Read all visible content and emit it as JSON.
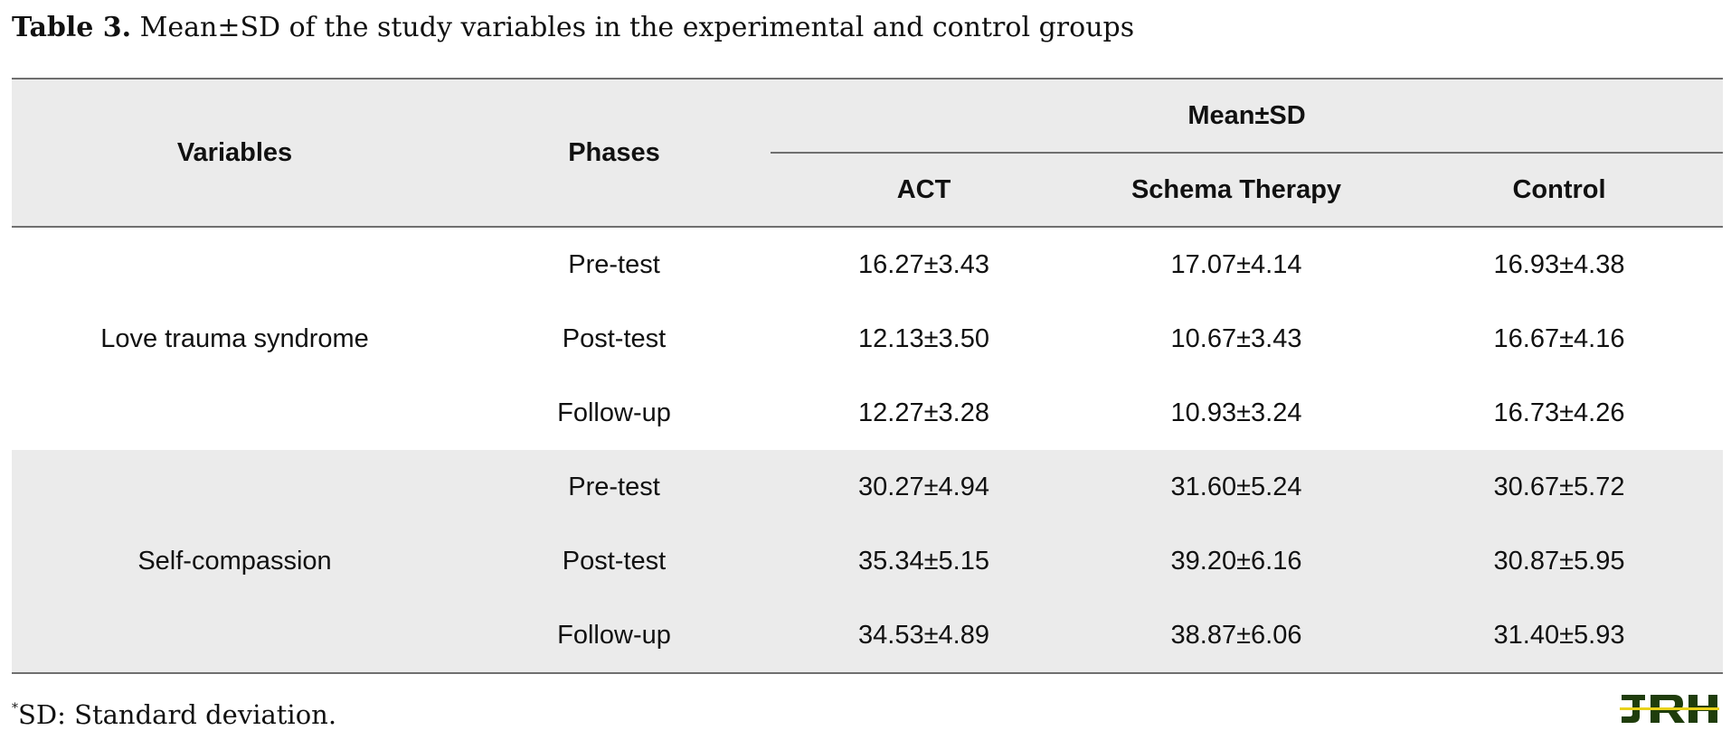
{
  "caption": {
    "label": "Table 3.",
    "text": " Mean±SD of the study variables in the experimental and control groups"
  },
  "table": {
    "headers": {
      "variables": "Variables",
      "phases": "Phases",
      "group": "Mean±SD",
      "act": "ACT",
      "schema": "Schema Therapy",
      "control": "Control"
    },
    "groups": [
      {
        "variable": "Love trauma syndrome",
        "rows": [
          {
            "phase": "Pre-test",
            "act": "16.27±3.43",
            "schema": "17.07±4.14",
            "control": "16.93±4.38"
          },
          {
            "phase": "Post-test",
            "act": "12.13±3.50",
            "schema": "10.67±3.43",
            "control": "16.67±4.16"
          },
          {
            "phase": "Follow-up",
            "act": "12.27±3.28",
            "schema": "10.93±3.24",
            "control": "16.73±4.26"
          }
        ]
      },
      {
        "variable": "Self-compassion",
        "rows": [
          {
            "phase": "Pre-test",
            "act": "30.27±4.94",
            "schema": "31.60±5.24",
            "control": "30.67±5.72"
          },
          {
            "phase": "Post-test",
            "act": "35.34±5.15",
            "schema": "39.20±6.16",
            "control": "30.87±5.95"
          },
          {
            "phase": "Follow-up",
            "act": "34.53±4.89",
            "schema": "38.87±6.06",
            "control": "31.40±5.93"
          }
        ]
      }
    ]
  },
  "footnote": {
    "marker": "*",
    "text": "SD: Standard deviation."
  },
  "logo": {
    "text": "JRH",
    "fill_color": "#1f3d0c",
    "highlight_color": "#e8d21a"
  }
}
